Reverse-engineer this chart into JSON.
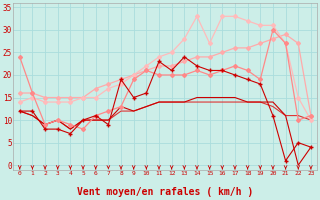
{
  "background_color": "#cceee8",
  "grid_color": "#aadddd",
  "xlabel": "Vent moyen/en rafales ( km/h )",
  "xlabel_color": "#cc0000",
  "xlabel_fontsize": 7,
  "tick_color": "#cc0000",
  "yticks": [
    0,
    5,
    10,
    15,
    20,
    25,
    30,
    35
  ],
  "xticks": [
    0,
    1,
    2,
    3,
    4,
    5,
    6,
    7,
    8,
    9,
    10,
    11,
    12,
    13,
    14,
    15,
    16,
    17,
    18,
    19,
    20,
    21,
    22,
    23
  ],
  "xlim": [
    -0.5,
    23.5
  ],
  "ylim": [
    -1,
    36
  ],
  "lines": [
    {
      "x": [
        0,
        1,
        2,
        3,
        4,
        5,
        6,
        7,
        8,
        9,
        10,
        11,
        12,
        13,
        14,
        15,
        16,
        17,
        18,
        19,
        20,
        21,
        22,
        23
      ],
      "y": [
        12,
        12,
        8,
        8,
        7,
        10,
        11,
        9,
        19,
        15,
        16,
        23,
        21,
        24,
        22,
        21,
        21,
        20,
        19,
        18,
        11,
        1,
        5,
        4
      ],
      "color": "#cc0000",
      "lw": 0.8,
      "marker": "+",
      "ms": 3,
      "zorder": 4
    },
    {
      "x": [
        0,
        1,
        2,
        3,
        4,
        5,
        6,
        7,
        8,
        9,
        10,
        11,
        12,
        13,
        14,
        15,
        16,
        17,
        18,
        19,
        20,
        21,
        22,
        23
      ],
      "y": [
        12,
        11,
        9,
        10,
        8,
        10,
        10,
        10,
        13,
        12,
        13,
        14,
        14,
        14,
        15,
        15,
        15,
        15,
        14,
        14,
        14,
        11,
        0,
        4
      ],
      "color": "#cc0000",
      "lw": 0.8,
      "marker": null,
      "ms": 0,
      "zorder": 3
    },
    {
      "x": [
        0,
        1,
        2,
        3,
        4,
        5,
        6,
        7,
        8,
        9,
        10,
        11,
        12,
        13,
        14,
        15,
        16,
        17,
        18,
        19,
        20,
        21,
        22,
        23
      ],
      "y": [
        12,
        11,
        9,
        10,
        8,
        10,
        10,
        10,
        12,
        12,
        13,
        14,
        14,
        14,
        14,
        14,
        14,
        14,
        14,
        14,
        13,
        11,
        11,
        10
      ],
      "color": "#dd3333",
      "lw": 0.8,
      "marker": null,
      "ms": 0,
      "zorder": 2
    },
    {
      "x": [
        0,
        1,
        2,
        3,
        4,
        5,
        6,
        7,
        8,
        9,
        10,
        11,
        12,
        13,
        14,
        15,
        16,
        17,
        18,
        19,
        20,
        21,
        22,
        23
      ],
      "y": [
        24,
        16,
        9,
        10,
        9,
        8,
        11,
        12,
        13,
        19,
        21,
        20,
        20,
        20,
        21,
        20,
        21,
        22,
        21,
        19,
        30,
        27,
        10,
        11
      ],
      "color": "#ff8888",
      "lw": 0.9,
      "marker": "D",
      "ms": 2,
      "zorder": 3
    },
    {
      "x": [
        0,
        1,
        2,
        3,
        4,
        5,
        6,
        7,
        8,
        9,
        10,
        11,
        12,
        13,
        14,
        15,
        16,
        17,
        18,
        19,
        20,
        21,
        22,
        23
      ],
      "y": [
        16,
        16,
        15,
        15,
        15,
        15,
        17,
        18,
        19,
        20,
        21,
        22,
        22,
        23,
        24,
        24,
        25,
        26,
        26,
        27,
        28,
        29,
        27,
        11
      ],
      "color": "#ffaaaa",
      "lw": 0.9,
      "marker": "D",
      "ms": 2,
      "zorder": 2
    },
    {
      "x": [
        0,
        1,
        2,
        3,
        4,
        5,
        6,
        7,
        8,
        9,
        10,
        11,
        12,
        13,
        14,
        15,
        16,
        17,
        18,
        19,
        20,
        21,
        22,
        23
      ],
      "y": [
        14,
        15,
        14,
        14,
        14,
        15,
        15,
        17,
        18,
        20,
        22,
        24,
        25,
        28,
        33,
        27,
        33,
        33,
        32,
        31,
        31,
        27,
        15,
        10
      ],
      "color": "#ffbbbb",
      "lw": 0.9,
      "marker": "D",
      "ms": 2,
      "zorder": 2
    }
  ],
  "arrow_color": "#cc0000",
  "arrow_size": 3.5
}
